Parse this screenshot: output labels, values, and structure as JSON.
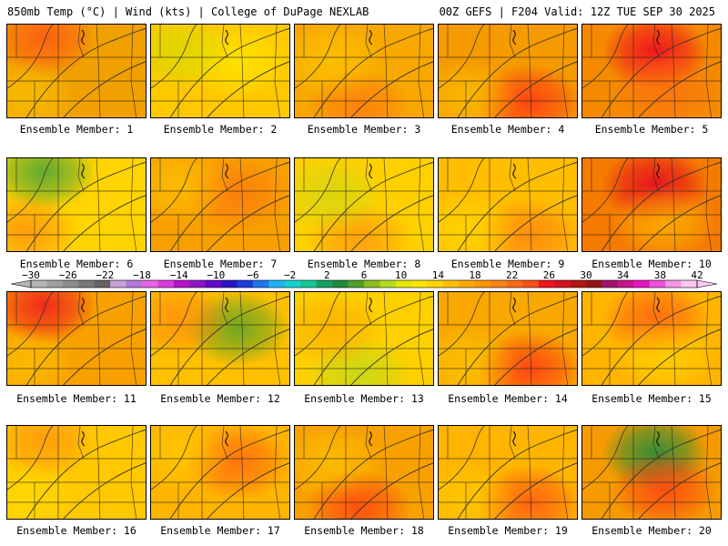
{
  "header": {
    "left": "850mb Temp (°C) | Wind (kts) | College of DuPage NEXLAB",
    "right": "00Z GEFS | F204 Valid: 12Z TUE SEP 30 2025"
  },
  "member_label_prefix": "Ensemble Member: ",
  "members": [
    {
      "number": "1",
      "base": "#f0a000",
      "blobs": [
        {
          "color": "#ff5a14",
          "intensity": 0.9
        },
        {
          "color": "#ffd400",
          "intensity": 0.5
        }
      ]
    },
    {
      "number": "2",
      "base": "#ffc800",
      "blobs": [
        {
          "color": "#ffe600",
          "intensity": 0.8
        },
        {
          "color": "#c8e000",
          "intensity": 0.6
        }
      ]
    },
    {
      "number": "3",
      "base": "#f8a800",
      "blobs": [
        {
          "color": "#ff6a14",
          "intensity": 0.6
        },
        {
          "color": "#ffd400",
          "intensity": 0.5
        }
      ]
    },
    {
      "number": "4",
      "base": "#f59a00",
      "blobs": [
        {
          "color": "#ff3c14",
          "intensity": 0.9
        },
        {
          "color": "#ffd400",
          "intensity": 0.5
        }
      ]
    },
    {
      "number": "5",
      "base": "#f58a00",
      "blobs": [
        {
          "color": "#f0141e",
          "intensity": 1.0
        },
        {
          "color": "#ff6a14",
          "intensity": 0.7
        }
      ]
    },
    {
      "number": "6",
      "base": "#ffd400",
      "blobs": [
        {
          "color": "#3ca03c",
          "intensity": 0.8
        },
        {
          "color": "#ff7814",
          "intensity": 0.6
        }
      ]
    },
    {
      "number": "7",
      "base": "#f8a000",
      "blobs": [
        {
          "color": "#ff6a14",
          "intensity": 0.6
        },
        {
          "color": "#ffd400",
          "intensity": 0.5
        }
      ]
    },
    {
      "number": "8",
      "base": "#ffd000",
      "blobs": [
        {
          "color": "#ff8214",
          "intensity": 0.6
        },
        {
          "color": "#b4dc1e",
          "intensity": 0.5
        }
      ]
    },
    {
      "number": "9",
      "base": "#ffbe00",
      "blobs": [
        {
          "color": "#ff7814",
          "intensity": 0.7
        },
        {
          "color": "#ffe600",
          "intensity": 0.5
        }
      ]
    },
    {
      "number": "10",
      "base": "#f57a00",
      "blobs": [
        {
          "color": "#e6141e",
          "intensity": 1.0
        },
        {
          "color": "#ffc800",
          "intensity": 0.6
        }
      ]
    },
    {
      "number": "11",
      "base": "#f8a000",
      "blobs": [
        {
          "color": "#f01e1e",
          "intensity": 0.9
        },
        {
          "color": "#ffd400",
          "intensity": 0.5
        }
      ]
    },
    {
      "number": "12",
      "base": "#ffc000",
      "blobs": [
        {
          "color": "#50a028",
          "intensity": 0.8
        },
        {
          "color": "#ff7814",
          "intensity": 0.6
        }
      ]
    },
    {
      "number": "13",
      "base": "#ffd000",
      "blobs": [
        {
          "color": "#b4dc1e",
          "intensity": 0.7
        },
        {
          "color": "#f8a000",
          "intensity": 0.6
        }
      ]
    },
    {
      "number": "14",
      "base": "#f8a800",
      "blobs": [
        {
          "color": "#ff3c14",
          "intensity": 0.9
        },
        {
          "color": "#ffd400",
          "intensity": 0.5
        }
      ]
    },
    {
      "number": "15",
      "base": "#ffb400",
      "blobs": [
        {
          "color": "#ff5a14",
          "intensity": 0.8
        },
        {
          "color": "#ffe600",
          "intensity": 0.5
        }
      ]
    },
    {
      "number": "16",
      "base": "#ffc800",
      "blobs": [
        {
          "color": "#ff8214",
          "intensity": 0.6
        },
        {
          "color": "#ffe600",
          "intensity": 0.5
        }
      ]
    },
    {
      "number": "17",
      "base": "#ffb400",
      "blobs": [
        {
          "color": "#ff5a14",
          "intensity": 0.7
        },
        {
          "color": "#ffd400",
          "intensity": 0.5
        }
      ]
    },
    {
      "number": "18",
      "base": "#f8a000",
      "blobs": [
        {
          "color": "#ff3c14",
          "intensity": 0.8
        },
        {
          "color": "#ffd400",
          "intensity": 0.5
        }
      ]
    },
    {
      "number": "19",
      "base": "#ffb400",
      "blobs": [
        {
          "color": "#ff5014",
          "intensity": 0.8
        },
        {
          "color": "#ffd400",
          "intensity": 0.5
        }
      ]
    },
    {
      "number": "20",
      "base": "#f59a00",
      "blobs": [
        {
          "color": "#1e8c3c",
          "intensity": 0.9
        },
        {
          "color": "#ff3c14",
          "intensity": 0.8
        }
      ]
    }
  ],
  "colorbar": {
    "labels": [
      "-30",
      "-26",
      "-22",
      "-18",
      "-14",
      "-10",
      "-6",
      "-2",
      "2",
      "6",
      "10",
      "14",
      "18",
      "22",
      "26",
      "30",
      "34",
      "38",
      "42"
    ],
    "colors": [
      "#b4b4b4",
      "#a0a0a0",
      "#8c8c8c",
      "#787878",
      "#646464",
      "#c8a0dc",
      "#b478dc",
      "#e664e6",
      "#dc3cdc",
      "#b414c8",
      "#8c14c8",
      "#640ac8",
      "#2814c8",
      "#1e3cdc",
      "#1e78f0",
      "#1eb4f0",
      "#14d2d2",
      "#14c896",
      "#14a064",
      "#1e8c3c",
      "#50a028",
      "#8cbe1e",
      "#b4dc1e",
      "#e6e600",
      "#ffe600",
      "#ffd400",
      "#ffbe00",
      "#ffa800",
      "#ff9600",
      "#ff8214",
      "#ff6a14",
      "#ff5014",
      "#f0141e",
      "#d2141e",
      "#b41414",
      "#961414",
      "#a0146e",
      "#c8148c",
      "#e614be",
      "#f050dc",
      "#f896e6",
      "#fac8f0"
    ]
  }
}
